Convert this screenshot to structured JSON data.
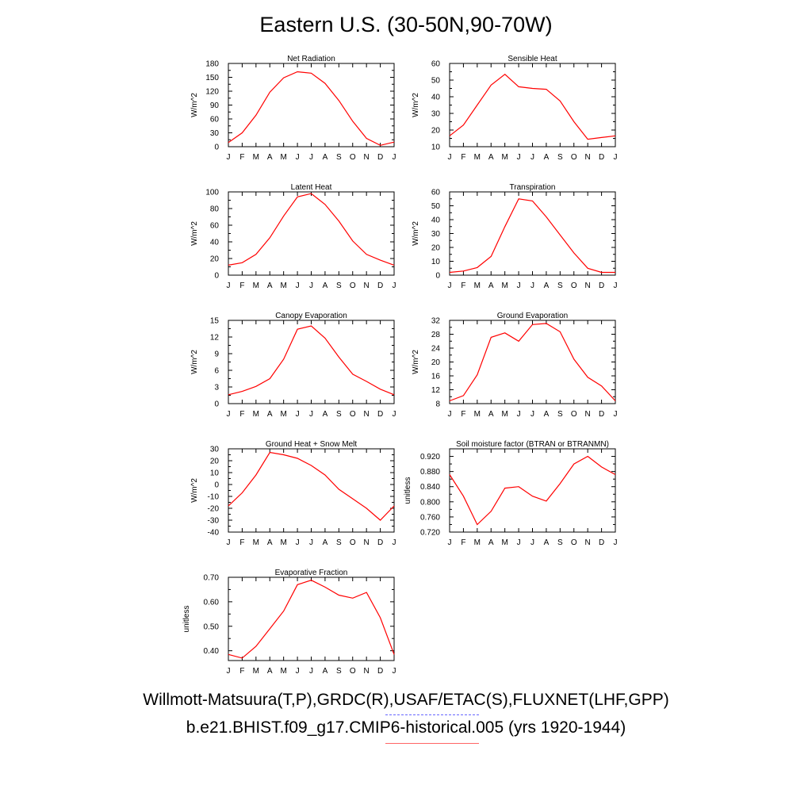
{
  "title": "Eastern U.S. (30-50N,90-70W)",
  "legend": {
    "obs_label": "Willmott-Matsuura(T,P),GRDC(R),USAF/ETAC(S),FLUXNET(LHF,GPP)",
    "model_label": "b.e21.BHIST.f09_g17.CMIP6-historical.005 (yrs 1920-1944)",
    "obs_color": "#6666ff",
    "model_color": "#ff6666"
  },
  "chart_data": [
    {
      "type": "line",
      "title": "Net Radiation",
      "ylabel": "W/m^2",
      "xlabel": "",
      "x": [
        "J",
        "F",
        "M",
        "A",
        "M",
        "J",
        "J",
        "A",
        "S",
        "O",
        "N",
        "D",
        "J"
      ],
      "ylim": [
        0,
        180
      ],
      "yticks": [
        0,
        30,
        60,
        90,
        120,
        150,
        180
      ],
      "ytick_labels": [
        "0",
        "30",
        "60",
        "90",
        "120",
        "150",
        "180"
      ],
      "series": [
        {
          "color": "#ff0000",
          "values": [
            9,
            30,
            68,
            118,
            149,
            162,
            159,
            137,
            100,
            55,
            18,
            3,
            10
          ]
        }
      ]
    },
    {
      "type": "line",
      "title": "Sensible Heat",
      "ylabel": "W/m^2",
      "xlabel": "",
      "x": [
        "J",
        "F",
        "M",
        "A",
        "M",
        "J",
        "J",
        "A",
        "S",
        "O",
        "N",
        "D",
        "J"
      ],
      "ylim": [
        10,
        60
      ],
      "yticks": [
        10,
        20,
        30,
        40,
        50,
        60
      ],
      "ytick_labels": [
        "10",
        "20",
        "30",
        "40",
        "50",
        "60"
      ],
      "series": [
        {
          "color": "#ff0000",
          "values": [
            16.5,
            23,
            35,
            47,
            53.5,
            46,
            45,
            44.5,
            37.5,
            25,
            14.5,
            15.5,
            16.5
          ]
        }
      ]
    },
    {
      "type": "line",
      "title": "Latent Heat",
      "ylabel": "W/m^2",
      "xlabel": "",
      "x": [
        "J",
        "F",
        "M",
        "A",
        "M",
        "J",
        "J",
        "A",
        "S",
        "O",
        "N",
        "D",
        "J"
      ],
      "ylim": [
        0,
        100
      ],
      "yticks": [
        0,
        20,
        40,
        60,
        80,
        100
      ],
      "ytick_labels": [
        "0",
        "20",
        "40",
        "60",
        "80",
        "100"
      ],
      "series": [
        {
          "color": "#ff0000",
          "values": [
            12,
            15,
            25,
            45,
            71,
            94,
            98,
            85,
            65,
            41,
            25,
            18,
            12
          ]
        }
      ]
    },
    {
      "type": "line",
      "title": "Transpiration",
      "ylabel": "W/m^2",
      "xlabel": "",
      "x": [
        "J",
        "F",
        "M",
        "A",
        "M",
        "J",
        "J",
        "A",
        "S",
        "O",
        "N",
        "D",
        "J"
      ],
      "ylim": [
        0,
        60
      ],
      "yticks": [
        0,
        10,
        20,
        30,
        40,
        50,
        60
      ],
      "ytick_labels": [
        "0",
        "10",
        "20",
        "30",
        "40",
        "50",
        "60"
      ],
      "series": [
        {
          "color": "#ff0000",
          "values": [
            2,
            3,
            5.5,
            13.5,
            35,
            55,
            53.5,
            42,
            29,
            16,
            5,
            2,
            2
          ]
        }
      ]
    },
    {
      "type": "line",
      "title": "Canopy Evaporation",
      "ylabel": "W/m^2",
      "xlabel": "",
      "x": [
        "J",
        "F",
        "M",
        "A",
        "M",
        "J",
        "J",
        "A",
        "S",
        "O",
        "N",
        "D",
        "J"
      ],
      "ylim": [
        0,
        15
      ],
      "yticks": [
        0,
        3,
        6,
        9,
        12,
        15
      ],
      "ytick_labels": [
        "0",
        "3",
        "6",
        "9",
        "12",
        "15"
      ],
      "series": [
        {
          "color": "#ff0000",
          "values": [
            1.6,
            2.2,
            3.1,
            4.5,
            8.0,
            13.4,
            14.0,
            11.8,
            8.4,
            5.3,
            4.0,
            2.6,
            1.6
          ]
        }
      ]
    },
    {
      "type": "line",
      "title": "Ground Evaporation",
      "ylabel": "W/m^2",
      "xlabel": "",
      "x": [
        "J",
        "F",
        "M",
        "A",
        "M",
        "J",
        "J",
        "A",
        "S",
        "O",
        "N",
        "D",
        "J"
      ],
      "ylim": [
        8,
        32
      ],
      "yticks": [
        8,
        12,
        16,
        20,
        24,
        28,
        32
      ],
      "ytick_labels": [
        "8",
        "12",
        "16",
        "20",
        "24",
        "28",
        "32"
      ],
      "series": [
        {
          "color": "#ff0000",
          "values": [
            8.8,
            10.3,
            16.3,
            27.1,
            28.4,
            26.0,
            30.8,
            31.1,
            28.7,
            20.8,
            15.6,
            13.1,
            8.8
          ]
        }
      ]
    },
    {
      "type": "line",
      "title": "Ground Heat + Snow Melt",
      "ylabel": "W/m^2",
      "xlabel": "",
      "x": [
        "J",
        "F",
        "M",
        "A",
        "M",
        "J",
        "J",
        "A",
        "S",
        "O",
        "N",
        "D",
        "J"
      ],
      "ylim": [
        -40,
        30
      ],
      "yticks": [
        -40,
        -30,
        -20,
        -10,
        0,
        10,
        20,
        30
      ],
      "ytick_labels": [
        "-40",
        "-30",
        "-20",
        "-10",
        "0",
        "10",
        "20",
        "30"
      ],
      "series": [
        {
          "color": "#ff0000",
          "values": [
            -18,
            -7,
            8,
            27,
            25,
            22,
            16,
            8,
            -4,
            -12,
            -20,
            -30,
            -18
          ]
        }
      ]
    },
    {
      "type": "line",
      "title": "Soil moisture factor (BTRAN or BTRANMN)",
      "ylabel": "unitless",
      "xlabel": "",
      "x": [
        "J",
        "F",
        "M",
        "A",
        "M",
        "J",
        "J",
        "A",
        "S",
        "O",
        "N",
        "D",
        "J"
      ],
      "ylim": [
        0.72,
        0.94
      ],
      "yticks": [
        0.72,
        0.76,
        0.8,
        0.84,
        0.88,
        0.92
      ],
      "ytick_labels": [
        "0.720",
        "0.760",
        "0.800",
        "0.840",
        "0.880",
        "0.920"
      ],
      "series": [
        {
          "color": "#ff0000",
          "values": [
            0.872,
            0.815,
            0.74,
            0.775,
            0.836,
            0.84,
            0.815,
            0.802,
            0.848,
            0.9,
            0.92,
            0.892,
            0.872
          ]
        }
      ]
    },
    {
      "type": "line",
      "title": "Evaporative Fraction",
      "ylabel": "unitless",
      "xlabel": "",
      "x": [
        "J",
        "F",
        "M",
        "A",
        "M",
        "J",
        "J",
        "A",
        "S",
        "O",
        "N",
        "D",
        "J"
      ],
      "ylim": [
        0.36,
        0.7
      ],
      "yticks": [
        0.4,
        0.5,
        0.6,
        0.7
      ],
      "ytick_labels": [
        "0.40",
        "0.50",
        "0.60",
        "0.70"
      ],
      "series": [
        {
          "color": "#ff0000",
          "values": [
            0.385,
            0.37,
            0.418,
            0.49,
            0.562,
            0.67,
            0.688,
            0.66,
            0.627,
            0.615,
            0.638,
            0.535,
            0.385
          ]
        }
      ]
    }
  ]
}
